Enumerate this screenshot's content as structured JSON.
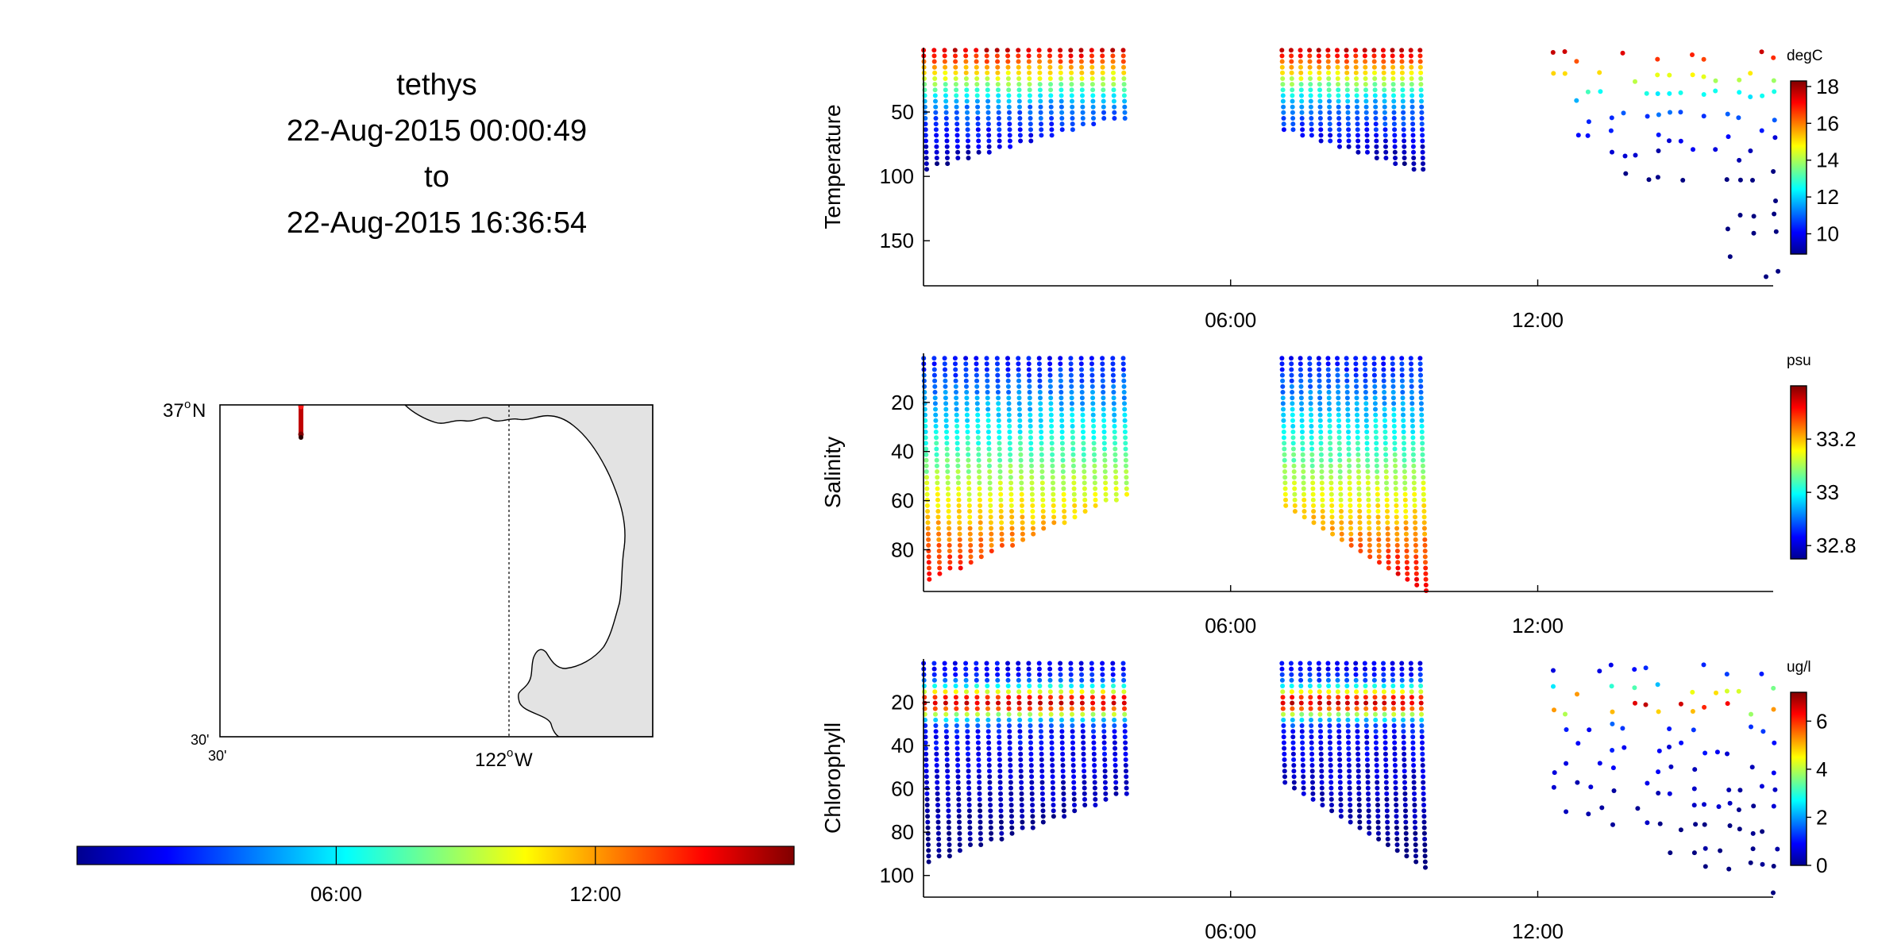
{
  "title": {
    "platform": "tethys",
    "start": "22-Aug-2015 00:00:49",
    "to": "to",
    "end": "22-Aug-2015 16:36:54"
  },
  "map": {
    "lat_top_label": "37",
    "lat_top_suffix": "N",
    "lat_bottom_label": "30'",
    "lon_left_label": "30'",
    "lon_mid_label": "122",
    "lon_mid_suffix": "W",
    "degree_mark": "o",
    "track_color": "#c00000"
  },
  "time_colorbar": {
    "ticks": [
      "06:00",
      "12:00"
    ],
    "tick_hours": [
      6,
      12
    ],
    "range_hours": [
      0,
      16.6
    ]
  },
  "chart_data": [
    {
      "type": "scatter",
      "title": "",
      "ylabel": "Temperature",
      "unit": "degC",
      "x_ticks": [
        "06:00",
        "12:00"
      ],
      "x_tick_hours": [
        6,
        12
      ],
      "xlim_hours": [
        0,
        16.6
      ],
      "y_ticks": [
        50,
        100,
        150
      ],
      "ylim": [
        0,
        185
      ],
      "y_reversed": true,
      "colorbar_ticks": [
        10,
        12,
        14,
        16,
        18
      ],
      "clim": [
        8.9,
        18.3
      ],
      "segments": [
        {
          "t_start": 0.0,
          "t_end": 3.9,
          "profiles": 20,
          "depth_start": 95,
          "depth_end": 55,
          "sparse": false
        },
        {
          "t_start": 7.0,
          "t_end": 9.7,
          "profiles": 16,
          "depth_start": 65,
          "depth_end": 98,
          "sparse": false
        },
        {
          "t_start": 12.3,
          "t_end": 16.6,
          "profiles": 20,
          "depth_start": 55,
          "depth_end": 185,
          "sparse": true
        }
      ]
    },
    {
      "type": "scatter",
      "title": "",
      "ylabel": "Salinity",
      "unit": "psu",
      "x_ticks": [
        "06:00",
        "12:00"
      ],
      "x_tick_hours": [
        6,
        12
      ],
      "xlim_hours": [
        0,
        16.6
      ],
      "y_ticks": [
        20,
        40,
        60,
        80
      ],
      "ylim": [
        0,
        97
      ],
      "y_reversed": true,
      "colorbar_ticks": [
        32.8,
        33,
        33.2
      ],
      "clim": [
        32.75,
        33.4
      ],
      "segments": [
        {
          "t_start": 0.0,
          "t_end": 3.9,
          "profiles": 20,
          "depth_start": 93,
          "depth_end": 58,
          "sparse": false
        },
        {
          "t_start": 7.0,
          "t_end": 9.7,
          "profiles": 16,
          "depth_start": 64,
          "depth_end": 97,
          "sparse": false
        }
      ]
    },
    {
      "type": "scatter",
      "title": "",
      "ylabel": "Chlorophyll",
      "unit": "ug/l",
      "x_ticks": [
        "06:00",
        "12:00"
      ],
      "x_tick_hours": [
        6,
        12
      ],
      "xlim_hours": [
        0,
        16.6
      ],
      "y_ticks": [
        20,
        40,
        60,
        80,
        100
      ],
      "ylim": [
        0,
        110
      ],
      "y_reversed": true,
      "colorbar_ticks": [
        0,
        2,
        4,
        6
      ],
      "clim": [
        0,
        7.2
      ],
      "segments": [
        {
          "t_start": 0.0,
          "t_end": 3.9,
          "profiles": 20,
          "depth_start": 95,
          "depth_end": 63,
          "sparse": false
        },
        {
          "t_start": 7.0,
          "t_end": 9.7,
          "profiles": 16,
          "depth_start": 58,
          "depth_end": 98,
          "sparse": false
        },
        {
          "t_start": 12.3,
          "t_end": 16.6,
          "profiles": 20,
          "depth_start": 65,
          "depth_end": 110,
          "sparse": true
        }
      ]
    }
  ]
}
